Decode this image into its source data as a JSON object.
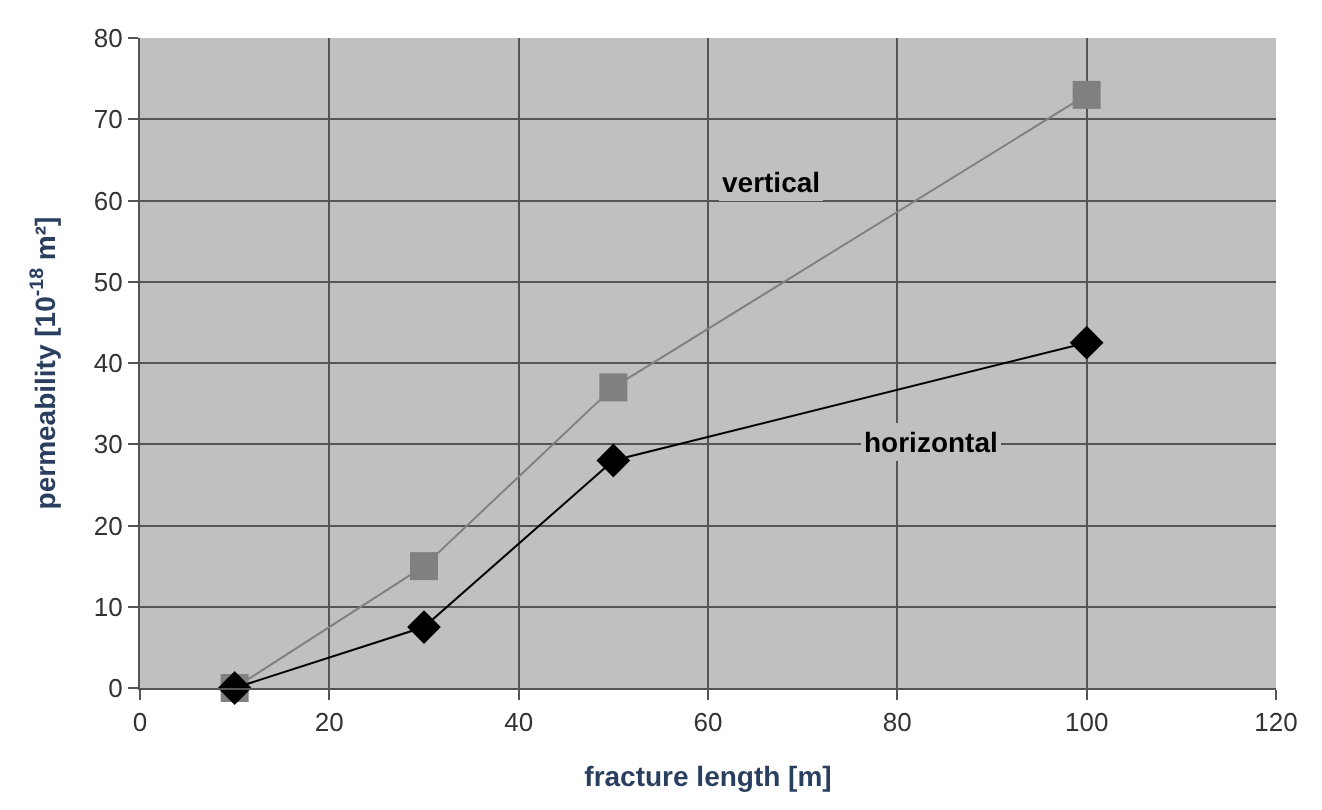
{
  "chart_data": {
    "type": "line",
    "xlabel": "fracture length [m]",
    "ylabel": "permeability [10$^{-18}$ m²]",
    "x": [
      10,
      30,
      50,
      100
    ],
    "series": [
      {
        "name": "vertical",
        "color": "#808080",
        "marker": "square",
        "values": [
          0,
          15,
          37,
          73
        ]
      },
      {
        "name": "horizontal",
        "color": "#000000",
        "marker": "diamond",
        "values": [
          0,
          7.5,
          28,
          42.5
        ]
      }
    ],
    "xlim": [
      0,
      120
    ],
    "xticks": [
      0,
      20,
      40,
      60,
      80,
      100,
      120
    ],
    "ylim": [
      0,
      80
    ],
    "yticks": [
      0,
      10,
      20,
      30,
      40,
      50,
      60,
      70,
      80
    ],
    "grid": true,
    "legend": false
  }
}
